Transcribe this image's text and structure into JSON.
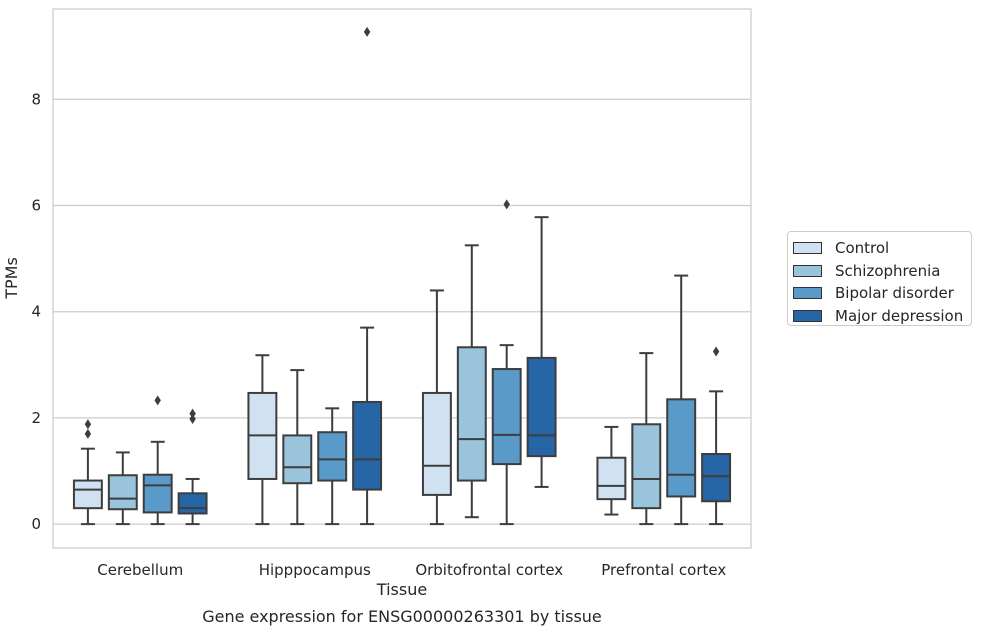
{
  "chart_data": {
    "type": "box",
    "title": "",
    "caption": "Gene expression for ENSG00000263301 by tissue",
    "xlabel": "Tissue",
    "ylabel": "TPMs",
    "ylim": [
      -0.45,
      9.7
    ],
    "yticks": [
      0,
      2,
      4,
      6,
      8
    ],
    "grid": true,
    "legend_position": "right",
    "categories": [
      "Cerebellum",
      "Hipppocampus",
      "Orbitofrontal cortex",
      "Prefrontal cortex"
    ],
    "series": [
      {
        "name": "Control",
        "color": "#d0e1f2",
        "boxes": [
          {
            "whisker_low": 0.0,
            "q1": 0.3,
            "median": 0.65,
            "q3": 0.82,
            "whisker_high": 1.42,
            "outliers": [
              1.7,
              1.88
            ]
          },
          {
            "whisker_low": 0.0,
            "q1": 0.85,
            "median": 1.67,
            "q3": 2.47,
            "whisker_high": 3.18,
            "outliers": []
          },
          {
            "whisker_low": 0.0,
            "q1": 0.55,
            "median": 1.1,
            "q3": 2.47,
            "whisker_high": 4.4,
            "outliers": []
          },
          {
            "whisker_low": 0.18,
            "q1": 0.47,
            "median": 0.72,
            "q3": 1.25,
            "whisker_high": 1.83,
            "outliers": []
          }
        ]
      },
      {
        "name": "Schizophrenia",
        "color": "#9ac3dc",
        "boxes": [
          {
            "whisker_low": 0.0,
            "q1": 0.28,
            "median": 0.48,
            "q3": 0.92,
            "whisker_high": 1.35,
            "outliers": []
          },
          {
            "whisker_low": 0.0,
            "q1": 0.77,
            "median": 1.07,
            "q3": 1.67,
            "whisker_high": 2.9,
            "outliers": []
          },
          {
            "whisker_low": 0.13,
            "q1": 0.82,
            "median": 1.6,
            "q3": 3.33,
            "whisker_high": 5.25,
            "outliers": []
          },
          {
            "whisker_low": 0.0,
            "q1": 0.3,
            "median": 0.85,
            "q3": 1.88,
            "whisker_high": 3.22,
            "outliers": []
          }
        ]
      },
      {
        "name": "Bipolar disorder",
        "color": "#5a9ac8",
        "boxes": [
          {
            "whisker_low": 0.0,
            "q1": 0.22,
            "median": 0.73,
            "q3": 0.93,
            "whisker_high": 1.55,
            "outliers": [
              2.33
            ]
          },
          {
            "whisker_low": 0.0,
            "q1": 0.82,
            "median": 1.22,
            "q3": 1.73,
            "whisker_high": 2.18,
            "outliers": []
          },
          {
            "whisker_low": 0.0,
            "q1": 1.13,
            "median": 1.68,
            "q3": 2.92,
            "whisker_high": 3.37,
            "outliers": [
              6.02
            ]
          },
          {
            "whisker_low": 0.0,
            "q1": 0.52,
            "median": 0.93,
            "q3": 2.35,
            "whisker_high": 4.68,
            "outliers": []
          }
        ]
      },
      {
        "name": "Major depression",
        "color": "#2666a6",
        "boxes": [
          {
            "whisker_low": 0.0,
            "q1": 0.2,
            "median": 0.3,
            "q3": 0.58,
            "whisker_high": 0.85,
            "outliers": [
              1.98,
              2.08
            ]
          },
          {
            "whisker_low": 0.0,
            "q1": 0.65,
            "median": 1.22,
            "q3": 2.3,
            "whisker_high": 3.7,
            "outliers": [
              9.27
            ]
          },
          {
            "whisker_low": 0.7,
            "q1": 1.28,
            "median": 1.67,
            "q3": 3.13,
            "whisker_high": 5.78,
            "outliers": []
          },
          {
            "whisker_low": 0.0,
            "q1": 0.43,
            "median": 0.9,
            "q3": 1.32,
            "whisker_high": 2.5,
            "outliers": [
              3.25
            ]
          }
        ]
      }
    ]
  }
}
